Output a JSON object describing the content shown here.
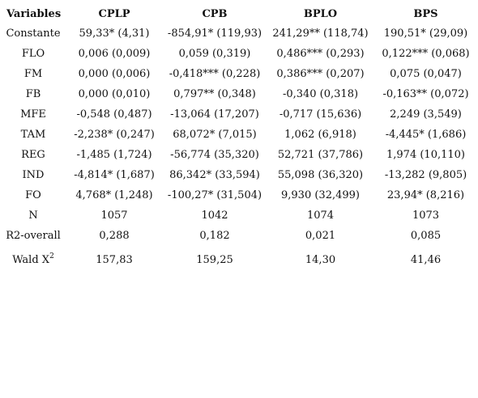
{
  "table": {
    "headers": [
      "Variables",
      "CPLP",
      "CPB",
      "BPLO",
      "BPS"
    ],
    "rows": [
      {
        "name": "Constante",
        "values": [
          "59,33* (4,31)",
          "-854,91* (119,93)",
          "241,29** (118,74)",
          "190,51* (29,09)"
        ]
      },
      {
        "name": "FLO",
        "values": [
          "0,006 (0,009)",
          "0,059 (0,319)",
          "0,486*** (0,293)",
          "0,122*** (0,068)"
        ]
      },
      {
        "name": "FM",
        "values": [
          "0,000 (0,006)",
          "-0,418*** (0,228)",
          "0,386*** (0,207)",
          "0,075 (0,047)"
        ]
      },
      {
        "name": "FB",
        "values": [
          "0,000 (0,010)",
          "0,797** (0,348)",
          "-0,340 (0,318)",
          "-0,163** (0,072)"
        ]
      },
      {
        "name": "MFE",
        "values": [
          "-0,548 (0,487)",
          "-13,064 (17,207)",
          "-0,717 (15,636)",
          "2,249 (3,549)"
        ]
      },
      {
        "name": "TAM",
        "values": [
          "-2,238* (0,247)",
          "68,072* (7,015)",
          "1,062 (6,918)",
          "-4,445* (1,686)"
        ]
      },
      {
        "name": "REG",
        "values": [
          "-1,485 (1,724)",
          "-56,774 (35,320)",
          "52,721 (37,786)",
          "1,974 (10,110)"
        ]
      },
      {
        "name": "IND",
        "values": [
          "-4,814* (1,687)",
          "86,342* (33,594)",
          "55,098 (36,320)",
          "-13,282 (9,805)"
        ]
      },
      {
        "name": "FO",
        "values": [
          "4,768* (1,248)",
          "-100,27* (31,504)",
          "9,930 (32,499)",
          "23,94* (8,216)"
        ]
      },
      {
        "name": "N",
        "values": [
          "1057",
          "1042",
          "1074",
          "1073"
        ]
      },
      {
        "name": "R2-overall",
        "values": [
          "0,288",
          "0,182",
          "0,021",
          "0,085"
        ]
      }
    ],
    "wald": {
      "name": "Wald X",
      "superscript": "2",
      "values": [
        "157,83",
        "159,25",
        "14,30",
        "41,46"
      ]
    }
  }
}
